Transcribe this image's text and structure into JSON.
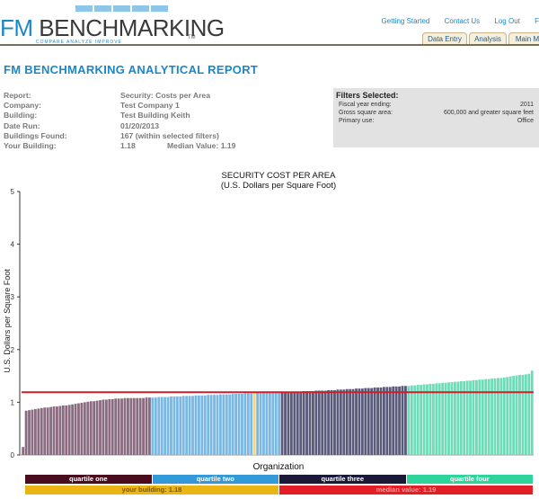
{
  "header": {
    "logo_text_fm": "FM",
    "logo_text_rest": " BENCHMARKING",
    "logo_tm": "TM",
    "logo_tagline": "COMPARE   ANALYZE   IMPROVE",
    "links": [
      "Getting Started",
      "Contact Us",
      "Log Out",
      "F"
    ],
    "tabs": [
      "Data Entry",
      "Analysis",
      "Main M"
    ]
  },
  "report_title": "FM BENCHMARKING ANALYTICAL REPORT",
  "info": {
    "report_label": "Report:",
    "report_value": "Security: Costs per Area",
    "company_label": "Company:",
    "company_value": "Test Company 1",
    "building_label": "Building:",
    "building_value": "Test Building Keith",
    "date_label": "Date Run:",
    "date_value": "01/20/2013",
    "found_label": "Buildings Found:",
    "found_value": "167 (within selected filters)",
    "yours_label": "Your Building:",
    "yours_value": "1.18",
    "median_label_value": "Median Value: 1.19"
  },
  "filters": {
    "title": "Filters Selected:",
    "rows": [
      {
        "label": "Fiscal year ending:",
        "value": "2011"
      },
      {
        "label": "Gross square area:",
        "value": "600,000 and greater square feet"
      },
      {
        "label": "Primary use:",
        "value": "Office"
      }
    ]
  },
  "chart_data": {
    "type": "bar",
    "title": "SECURITY COST PER AREA",
    "subtitle": "(U.S. Dollars per Square Foot)",
    "ylabel": "U.S. Dollars per Square Foot",
    "xlabel": "Organization",
    "ylim": [
      0,
      5
    ],
    "yticks": [
      "0",
      "1",
      "2",
      "3",
      "4",
      "5"
    ],
    "building_count": 167,
    "quartile_values": {
      "q1": [
        0.15,
        0.84,
        0.85,
        0.86,
        0.87,
        0.88,
        0.89,
        0.9,
        0.9,
        0.91,
        0.92,
        0.92,
        0.93,
        0.94,
        0.94,
        0.95,
        0.96,
        0.97,
        0.98,
        0.99,
        1.0,
        1.01,
        1.02,
        1.02,
        1.03,
        1.04,
        1.05,
        1.05,
        1.06,
        1.06,
        1.07,
        1.07,
        1.07,
        1.08,
        1.08,
        1.08,
        1.08,
        1.08,
        1.08,
        1.08,
        1.09,
        1.09
      ],
      "q2": [
        1.09,
        1.09,
        1.1,
        1.1,
        1.1,
        1.1,
        1.11,
        1.11,
        1.11,
        1.11,
        1.12,
        1.12,
        1.12,
        1.12,
        1.13,
        1.13,
        1.13,
        1.13,
        1.14,
        1.14,
        1.14,
        1.14,
        1.15,
        1.15,
        1.15,
        1.15,
        1.16,
        1.16,
        1.16,
        1.16,
        1.17,
        1.17,
        1.17,
        1.18,
        1.18,
        1.18,
        1.18,
        1.18,
        1.18,
        1.19,
        1.19,
        1.19
      ],
      "q3": [
        1.19,
        1.19,
        1.19,
        1.2,
        1.2,
        1.2,
        1.2,
        1.21,
        1.21,
        1.21,
        1.21,
        1.22,
        1.22,
        1.22,
        1.22,
        1.23,
        1.23,
        1.23,
        1.24,
        1.24,
        1.24,
        1.25,
        1.25,
        1.25,
        1.26,
        1.26,
        1.26,
        1.27,
        1.27,
        1.27,
        1.28,
        1.28,
        1.28,
        1.29,
        1.29,
        1.29,
        1.3,
        1.3,
        1.3,
        1.31,
        1.31
      ],
      "q4": [
        1.31,
        1.32,
        1.32,
        1.33,
        1.33,
        1.34,
        1.34,
        1.35,
        1.35,
        1.36,
        1.36,
        1.37,
        1.37,
        1.38,
        1.38,
        1.39,
        1.39,
        1.4,
        1.4,
        1.41,
        1.41,
        1.42,
        1.42,
        1.43,
        1.43,
        1.44,
        1.44,
        1.45,
        1.45,
        1.46,
        1.46,
        1.47,
        1.48,
        1.49,
        1.5,
        1.51,
        1.52,
        1.52,
        1.53,
        1.54,
        1.6
      ]
    },
    "your_building_value": 1.18,
    "median_value": 1.19,
    "colors": {
      "q1": "#8b6b80",
      "q2": "#7ab8e4",
      "q3": "#5a5a7a",
      "q4": "#6edcb8",
      "your_building": "#f2d88a",
      "median_line": "#c8202c"
    }
  },
  "quartile_bands": [
    {
      "label": "quartile one",
      "bg": "#4a0d1e",
      "fg": "#ffffff"
    },
    {
      "label": "quartile two",
      "bg": "#3399d8",
      "fg": "#ffffff"
    },
    {
      "label": "quartile three",
      "bg": "#1a1a38",
      "fg": "#ffffff"
    },
    {
      "label": "quartile four",
      "bg": "#2ed49a",
      "fg": "#ffffff"
    }
  ],
  "legend_bands": [
    {
      "label": "your building: 1.18",
      "bg": "#eab515",
      "fg": "#7a5800"
    },
    {
      "label": "median value: 1.19",
      "bg": "#e31e26",
      "fg": "#ff9999"
    }
  ]
}
